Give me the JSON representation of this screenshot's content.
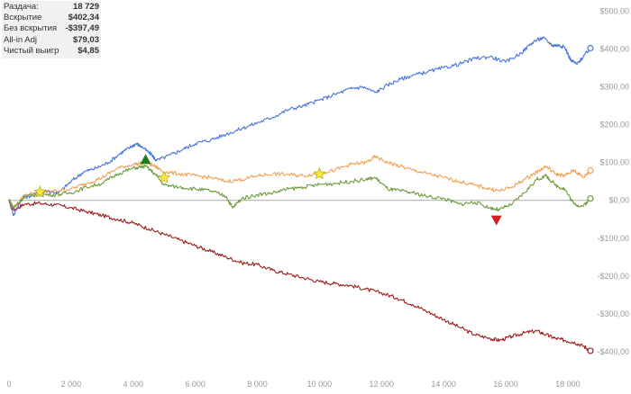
{
  "stats": [
    {
      "label": "Раздача:",
      "value": "18 729"
    },
    {
      "label": "Вскрытие",
      "value": "$402,34"
    },
    {
      "label": "Без вскрытия",
      "value": "-$397,49"
    },
    {
      "label": "All-in Adj",
      "value": "$79,03"
    },
    {
      "label": "Чистый выигр",
      "value": "$4,85"
    }
  ],
  "colors": {
    "showdown": "#4a74d8",
    "non_showdown": "#9b1c1c",
    "allin_adj": "#f0a050",
    "net_won": "#6a9a3a",
    "zero_line": "#aaaaaa",
    "axis_text": "#999999",
    "marker_star": "#f5ea3a",
    "marker_up": "#1f7a1f",
    "marker_down": "#d42020"
  },
  "chart_data": {
    "type": "line",
    "xlim": [
      0,
      18729
    ],
    "ylim": [
      -450,
      520
    ],
    "x_ticks": [
      0,
      2000,
      4000,
      6000,
      8000,
      10000,
      12000,
      14000,
      16000,
      18000
    ],
    "x_tick_labels": [
      "0",
      "2 000",
      "4 000",
      "6 000",
      "8 000",
      "10 000",
      "12 000",
      "14 000",
      "16 000",
      "18 000"
    ],
    "y_ticks": [
      500,
      400,
      300,
      200,
      100,
      0,
      -100,
      -200,
      -300,
      -400
    ],
    "y_tick_labels": [
      "$500,00",
      "$400,00",
      "$300,00",
      "$200,00",
      "$100,00",
      "$0,00",
      "-$100,00",
      "-$200,00",
      "-$300,00",
      "-$400,00"
    ],
    "series": [
      {
        "key": "showdown",
        "color_key": "showdown",
        "x": [
          0,
          150,
          400,
          800,
          1200,
          1600,
          2000,
          2400,
          2800,
          3200,
          3600,
          3900,
          4100,
          4300,
          4600,
          4750,
          5200,
          5600,
          6000,
          6500,
          7000,
          7500,
          8000,
          8500,
          9000,
          9500,
          10000,
          10500,
          11000,
          11400,
          11800,
          12200,
          12600,
          13000,
          13500,
          14000,
          14500,
          15000,
          15500,
          16000,
          16500,
          16900,
          17200,
          17500,
          17700,
          17900,
          18100,
          18300,
          18500,
          18729
        ],
        "y": [
          0,
          -40,
          5,
          15,
          25,
          20,
          50,
          75,
          85,
          100,
          125,
          140,
          150,
          140,
          120,
          105,
          120,
          135,
          150,
          160,
          175,
          190,
          205,
          220,
          240,
          250,
          265,
          280,
          295,
          300,
          285,
          305,
          320,
          330,
          340,
          350,
          360,
          375,
          380,
          365,
          390,
          420,
          430,
          410,
          410,
          405,
          370,
          360,
          380,
          402.34
        ]
      },
      {
        "key": "non_showdown",
        "color_key": "non_showdown",
        "x": [
          0,
          150,
          500,
          1000,
          1500,
          2000,
          2500,
          3000,
          3500,
          4000,
          4500,
          5000,
          5500,
          6000,
          6500,
          7000,
          7500,
          8000,
          8500,
          9000,
          9500,
          10000,
          10500,
          11000,
          11500,
          12000,
          12500,
          13000,
          13500,
          14000,
          14500,
          15000,
          15500,
          15800,
          16200,
          16600,
          17000,
          17300,
          17600,
          17900,
          18200,
          18500,
          18729
        ],
        "y": [
          0,
          -25,
          -10,
          -8,
          -12,
          -20,
          -30,
          -40,
          -50,
          -60,
          -75,
          -90,
          -105,
          -120,
          -135,
          -150,
          -165,
          -170,
          -185,
          -195,
          -205,
          -215,
          -220,
          -225,
          -235,
          -245,
          -258,
          -275,
          -295,
          -315,
          -335,
          -355,
          -365,
          -370,
          -360,
          -350,
          -345,
          -355,
          -365,
          -370,
          -375,
          -385,
          -397.49
        ]
      },
      {
        "key": "allin_adj",
        "color_key": "allin_adj",
        "x": [
          0,
          150,
          500,
          1000,
          1500,
          2000,
          2500,
          3000,
          3500,
          4000,
          4400,
          4700,
          5000,
          5500,
          6000,
          6500,
          7000,
          7500,
          8000,
          8500,
          9000,
          9500,
          10000,
          10500,
          11000,
          11500,
          11800,
          12200,
          12600,
          13000,
          13500,
          14000,
          14500,
          15000,
          15500,
          15800,
          16200,
          16600,
          17000,
          17300,
          17600,
          17900,
          18200,
          18500,
          18729
        ],
        "y": [
          0,
          -20,
          15,
          20,
          25,
          30,
          45,
          60,
          85,
          95,
          100,
          90,
          75,
          70,
          65,
          60,
          50,
          55,
          65,
          70,
          68,
          65,
          72,
          80,
          95,
          100,
          115,
          100,
          90,
          80,
          70,
          60,
          50,
          40,
          30,
          25,
          35,
          55,
          75,
          90,
          70,
          65,
          80,
          60,
          79.03
        ]
      },
      {
        "key": "net_won",
        "color_key": "net_won",
        "x": [
          0,
          150,
          500,
          1000,
          1500,
          2000,
          2500,
          3000,
          3500,
          4000,
          4400,
          4700,
          5000,
          5500,
          6000,
          6500,
          7000,
          7200,
          7500,
          8000,
          8500,
          9000,
          9500,
          10000,
          10500,
          11000,
          11500,
          11800,
          12200,
          12600,
          13000,
          13500,
          14000,
          14500,
          15000,
          15500,
          15800,
          16200,
          16600,
          17000,
          17300,
          17600,
          17900,
          18200,
          18500,
          18729
        ],
        "y": [
          0,
          -20,
          10,
          15,
          15,
          20,
          35,
          45,
          70,
          85,
          90,
          70,
          40,
          35,
          30,
          25,
          10,
          -20,
          5,
          15,
          20,
          30,
          35,
          42,
          45,
          50,
          55,
          60,
          30,
          25,
          20,
          10,
          5,
          -10,
          -5,
          -20,
          -25,
          -10,
          20,
          55,
          65,
          40,
          30,
          -10,
          -15,
          4.85
        ]
      }
    ],
    "markers": [
      {
        "type": "star",
        "x": 1000,
        "y": 22
      },
      {
        "type": "triangle-up",
        "x": 4400,
        "y": 108
      },
      {
        "type": "star",
        "x": 5000,
        "y": 60
      },
      {
        "type": "star",
        "x": 10000,
        "y": 70
      },
      {
        "type": "triangle-down",
        "x": 15700,
        "y": -52
      }
    ],
    "end_markers": [
      {
        "series": "showdown",
        "y": 402.34
      },
      {
        "series": "allin_adj",
        "y": 79.03
      },
      {
        "series": "net_won",
        "y": 4.85
      },
      {
        "series": "non_showdown",
        "y": -397.49
      }
    ]
  }
}
